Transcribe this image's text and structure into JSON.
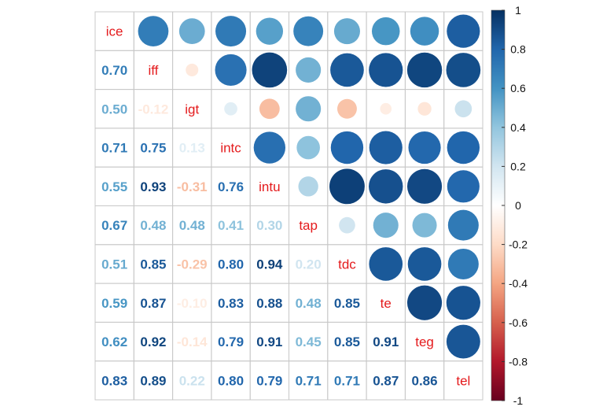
{
  "chart_data": {
    "type": "heatmap",
    "variables": [
      "ice",
      "iff",
      "igt",
      "intc",
      "intu",
      "tap",
      "tdc",
      "te",
      "teg",
      "tel"
    ],
    "matrix": [
      [
        1.0,
        0.7,
        0.5,
        0.71,
        0.55,
        0.67,
        0.51,
        0.59,
        0.62,
        0.83
      ],
      [
        0.7,
        1.0,
        -0.12,
        0.75,
        0.93,
        0.48,
        0.85,
        0.87,
        0.92,
        0.89
      ],
      [
        0.5,
        -0.12,
        1.0,
        0.13,
        -0.31,
        0.48,
        -0.29,
        -0.1,
        -0.14,
        0.22
      ],
      [
        0.71,
        0.75,
        0.13,
        1.0,
        0.76,
        0.41,
        0.8,
        0.83,
        0.79,
        0.8
      ],
      [
        0.55,
        0.93,
        -0.31,
        0.76,
        1.0,
        0.3,
        0.94,
        0.88,
        0.91,
        0.79
      ],
      [
        0.67,
        0.48,
        0.48,
        0.41,
        0.3,
        1.0,
        0.2,
        0.48,
        0.45,
        0.71
      ],
      [
        0.51,
        0.85,
        -0.29,
        0.8,
        0.94,
        0.2,
        1.0,
        0.85,
        0.85,
        0.71
      ],
      [
        0.59,
        0.87,
        -0.1,
        0.83,
        0.88,
        0.48,
        0.85,
        1.0,
        0.91,
        0.87
      ],
      [
        0.62,
        0.92,
        -0.14,
        0.79,
        0.91,
        0.45,
        0.85,
        0.91,
        1.0,
        0.86
      ],
      [
        0.83,
        0.89,
        0.22,
        0.8,
        0.79,
        0.71,
        0.71,
        0.87,
        0.86,
        1.0
      ]
    ],
    "lower_triangle": "numbers",
    "upper_triangle": "circles",
    "diagonal": "variable names",
    "label_color": "#e41a1c",
    "colorbar": {
      "range": [
        -1,
        1
      ],
      "ticks": [
        "1",
        "0.8",
        "0.6",
        "0.4",
        "0.2",
        "0",
        "-0.2",
        "-0.4",
        "-0.6",
        "-0.8",
        "-1"
      ],
      "tick_values": [
        1,
        0.8,
        0.6,
        0.4,
        0.2,
        0,
        -0.2,
        -0.4,
        -0.6,
        -0.8,
        -1
      ],
      "colors": [
        "#67001F",
        "#B2182B",
        "#D6604D",
        "#F4A582",
        "#FDDBC7",
        "#FFFFFF",
        "#D1E5F0",
        "#92C5DE",
        "#4393C3",
        "#2166AC",
        "#053061"
      ]
    },
    "grid": true
  }
}
